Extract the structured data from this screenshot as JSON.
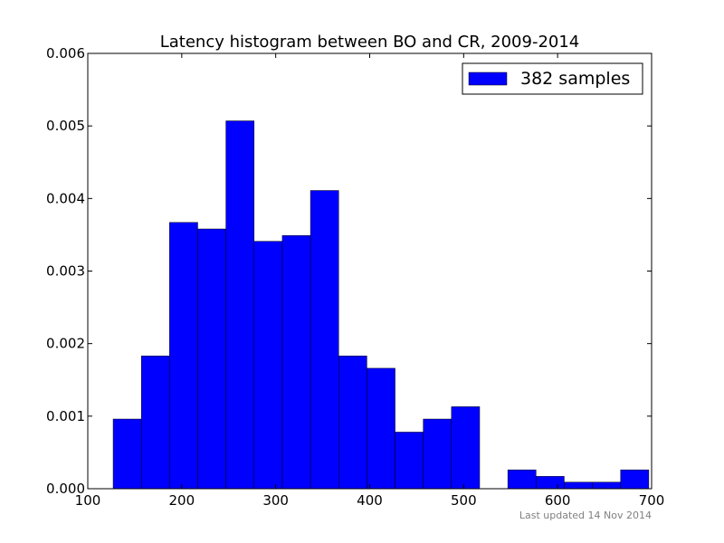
{
  "chart_data": {
    "type": "bar",
    "title": "Latency histogram between BO and CR, 2009-2014",
    "xlabel": "",
    "ylabel": "",
    "xlim": [
      100,
      700
    ],
    "ylim": [
      0,
      0.006
    ],
    "x_ticks": [
      "100",
      "200",
      "300",
      "400",
      "500",
      "600",
      "700"
    ],
    "y_ticks": [
      "0.000",
      "0.001",
      "0.002",
      "0.003",
      "0.004",
      "0.005",
      "0.006"
    ],
    "grid": false,
    "legend_position": "top-right",
    "bar_color": "#0000ff",
    "series": [
      {
        "name": "382 samples",
        "bins": [
          {
            "x0": 127,
            "x1": 157,
            "value": 0.00096
          },
          {
            "x0": 157,
            "x1": 187,
            "value": 0.00183
          },
          {
            "x0": 187,
            "x1": 217,
            "value": 0.00367
          },
          {
            "x0": 217,
            "x1": 247,
            "value": 0.00358
          },
          {
            "x0": 247,
            "x1": 277,
            "value": 0.00507
          },
          {
            "x0": 277,
            "x1": 307,
            "value": 0.00341
          },
          {
            "x0": 307,
            "x1": 337,
            "value": 0.00349
          },
          {
            "x0": 337,
            "x1": 367,
            "value": 0.00411
          },
          {
            "x0": 367,
            "x1": 397,
            "value": 0.00183
          },
          {
            "x0": 397,
            "x1": 427,
            "value": 0.00166
          },
          {
            "x0": 427,
            "x1": 457,
            "value": 0.00078
          },
          {
            "x0": 457,
            "x1": 487,
            "value": 0.00096
          },
          {
            "x0": 487,
            "x1": 517,
            "value": 0.00113
          },
          {
            "x0": 517,
            "x1": 547,
            "value": 0.0
          },
          {
            "x0": 547,
            "x1": 577,
            "value": 0.00026
          },
          {
            "x0": 577,
            "x1": 607,
            "value": 0.00017
          },
          {
            "x0": 607,
            "x1": 637,
            "value": 9e-05
          },
          {
            "x0": 637,
            "x1": 667,
            "value": 9e-05
          },
          {
            "x0": 667,
            "x1": 697,
            "value": 0.00026
          }
        ]
      }
    ]
  },
  "footer": {
    "note": "Last updated 14 Nov 2014"
  }
}
